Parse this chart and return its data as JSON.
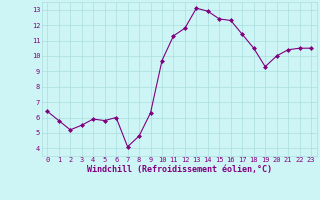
{
  "x": [
    0,
    1,
    2,
    3,
    4,
    5,
    6,
    7,
    8,
    9,
    10,
    11,
    12,
    13,
    14,
    15,
    16,
    17,
    18,
    19,
    20,
    21,
    22,
    23
  ],
  "y": [
    6.4,
    5.8,
    5.2,
    5.5,
    5.9,
    5.8,
    6.0,
    4.1,
    4.8,
    6.3,
    9.7,
    11.3,
    11.8,
    13.1,
    12.9,
    12.4,
    12.3,
    11.4,
    10.5,
    9.3,
    10.0,
    10.4,
    10.5,
    10.5
  ],
  "line_color": "#800080",
  "marker": "D",
  "marker_size": 2,
  "bg_color": "#cef5f5",
  "grid_color": "#aadddd",
  "xlabel": "Windchill (Refroidissement éolien,°C)",
  "xlim": [
    -0.5,
    23.5
  ],
  "ylim": [
    3.5,
    13.5
  ],
  "yticks": [
    4,
    5,
    6,
    7,
    8,
    9,
    10,
    11,
    12,
    13
  ],
  "xtick_labels": [
    "0",
    "1",
    "2",
    "3",
    "4",
    "5",
    "6",
    "7",
    "8",
    "9",
    "10",
    "11",
    "12",
    "13",
    "14",
    "15",
    "16",
    "17",
    "18",
    "19",
    "20",
    "21",
    "22",
    "23"
  ],
  "tick_color": "#800080",
  "label_color": "#800080",
  "tick_fontsize": 5,
  "xlabel_fontsize": 6
}
